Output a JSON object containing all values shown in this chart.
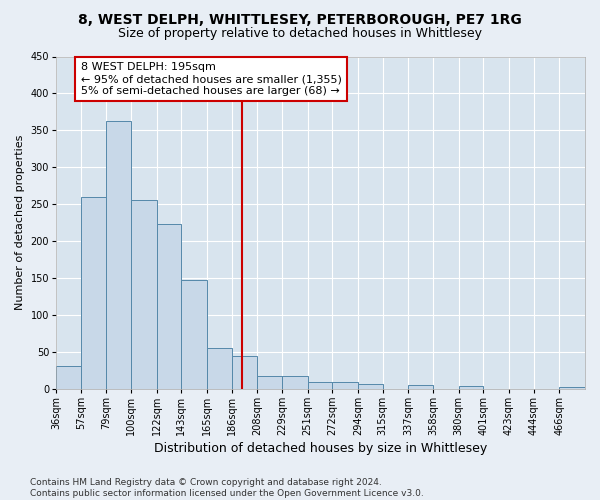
{
  "title": "8, WEST DELPH, WHITTLESEY, PETERBOROUGH, PE7 1RG",
  "subtitle": "Size of property relative to detached houses in Whittlesey",
  "xlabel": "Distribution of detached houses by size in Whittlesey",
  "ylabel": "Number of detached properties",
  "bin_labels": [
    "36sqm",
    "57sqm",
    "79sqm",
    "100sqm",
    "122sqm",
    "143sqm",
    "165sqm",
    "186sqm",
    "208sqm",
    "229sqm",
    "251sqm",
    "272sqm",
    "294sqm",
    "315sqm",
    "337sqm",
    "358sqm",
    "380sqm",
    "401sqm",
    "423sqm",
    "444sqm",
    "466sqm"
  ],
  "bin_edges": [
    36,
    57,
    79,
    100,
    122,
    143,
    165,
    186,
    208,
    229,
    251,
    272,
    294,
    315,
    337,
    358,
    380,
    401,
    423,
    444,
    466
  ],
  "bar_heights": [
    30,
    260,
    362,
    255,
    223,
    147,
    55,
    44,
    17,
    17,
    9,
    9,
    6,
    0,
    5,
    0,
    3,
    0,
    0,
    0,
    2
  ],
  "bar_color": "#c8d8e8",
  "bar_edge_color": "#5588aa",
  "vline_x": 195,
  "vline_color": "#cc0000",
  "annotation_line1": "8 WEST DELPH: 195sqm",
  "annotation_line2": "← 95% of detached houses are smaller (1,355)",
  "annotation_line3": "5% of semi-detached houses are larger (68) →",
  "annotation_box_color": "#cc0000",
  "ylim": [
    0,
    450
  ],
  "yticks": [
    0,
    50,
    100,
    150,
    200,
    250,
    300,
    350,
    400,
    450
  ],
  "background_color": "#e8eef5",
  "plot_bg_color": "#d8e4ee",
  "footer": "Contains HM Land Registry data © Crown copyright and database right 2024.\nContains public sector information licensed under the Open Government Licence v3.0.",
  "title_fontsize": 10,
  "subtitle_fontsize": 9,
  "xlabel_fontsize": 9,
  "ylabel_fontsize": 8,
  "tick_fontsize": 7,
  "annotation_fontsize": 8,
  "footer_fontsize": 6.5
}
